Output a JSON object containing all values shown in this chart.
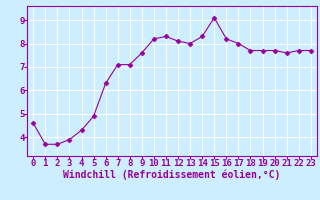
{
  "x": [
    0,
    1,
    2,
    3,
    4,
    5,
    6,
    7,
    8,
    9,
    10,
    11,
    12,
    13,
    14,
    15,
    16,
    17,
    18,
    19,
    20,
    21,
    22,
    23
  ],
  "y": [
    4.6,
    3.7,
    3.7,
    3.9,
    4.3,
    4.9,
    6.3,
    7.1,
    7.1,
    7.6,
    8.2,
    8.3,
    8.1,
    8.0,
    8.3,
    9.1,
    8.2,
    8.0,
    7.7,
    7.7,
    7.7,
    7.6,
    7.7,
    7.7
  ],
  "xlim": [
    -0.5,
    23.5
  ],
  "ylim": [
    3.2,
    9.6
  ],
  "xticks": [
    0,
    1,
    2,
    3,
    4,
    5,
    6,
    7,
    8,
    9,
    10,
    11,
    12,
    13,
    14,
    15,
    16,
    17,
    18,
    19,
    20,
    21,
    22,
    23
  ],
  "yticks": [
    4,
    5,
    6,
    7,
    8,
    9
  ],
  "xlabel": "Windchill (Refroidissement éolien,°C)",
  "line_color": "#990099",
  "marker": "D",
  "marker_size": 2.5,
  "bg_color": "#cceeff",
  "grid_color": "#ffffff",
  "font_color": "#990099",
  "tick_label_size": 6.5,
  "xlabel_size": 7
}
